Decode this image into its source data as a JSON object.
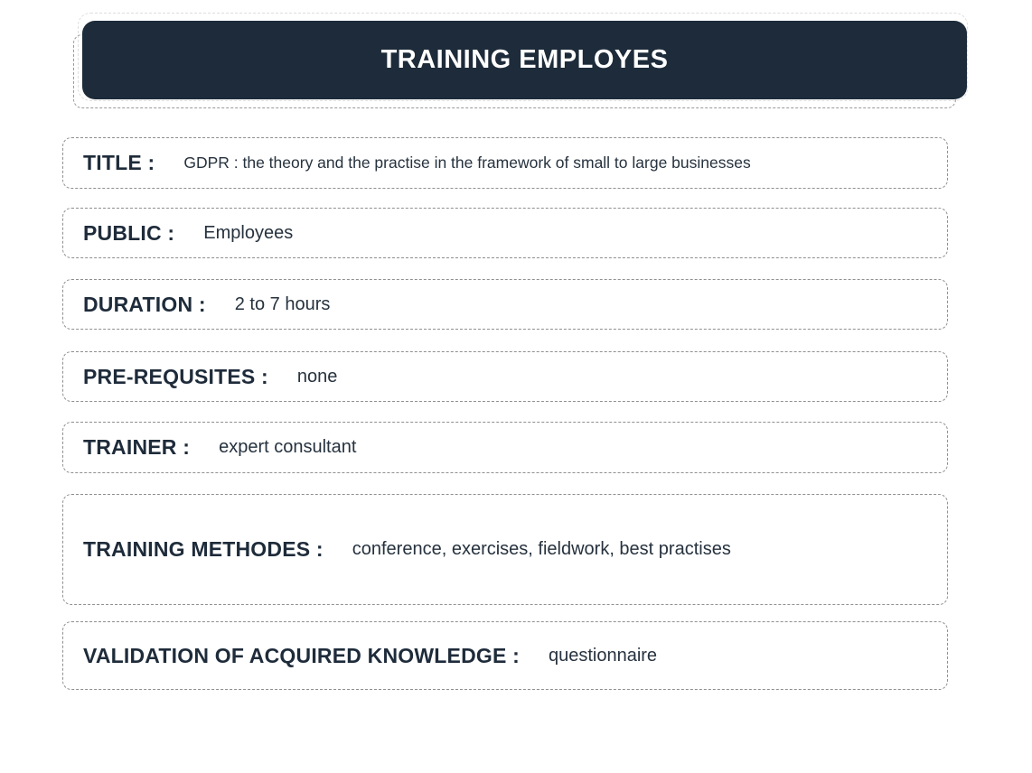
{
  "header": {
    "title": "TRAINING EMPLOYES"
  },
  "rows": [
    {
      "label": "TITLE :",
      "value": "GDPR : the theory and the practise in the framework of small to large businesses"
    },
    {
      "label": "PUBLIC :",
      "value": "Employees"
    },
    {
      "label": "DURATION :",
      "value": "2 to 7 hours"
    },
    {
      "label": "PRE-REQUSITES :",
      "value": "none"
    },
    {
      "label": "TRAINER :",
      "value": "expert consultant"
    },
    {
      "label": "TRAINING METHODES :",
      "value": "conference, exercises, fieldwork, best practises"
    },
    {
      "label": "VALIDATION OF ACQUIRED KNOWLEDGE :",
      "value": "questionnaire"
    }
  ],
  "colors": {
    "header_bg": "#1d2b3a",
    "header_text": "#ffffff",
    "label_text": "#1e2b3a",
    "value_text": "#26323e",
    "border_gray": "#8f8f8f",
    "border_light": "#dddddd"
  }
}
